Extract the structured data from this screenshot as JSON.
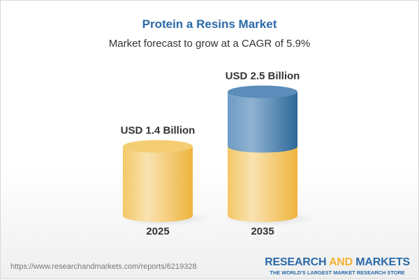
{
  "title": "Protein a Resins Market",
  "subtitle": "Market forecast to grow at a CAGR of 5.9%",
  "chart_data": {
    "type": "bar",
    "style": "3d-cylinder",
    "title": "Protein a Resins Market",
    "subtitle": "Market forecast to grow at a CAGR of 5.9%",
    "categories": [
      "2025",
      "2035"
    ],
    "values": [
      1.4,
      2.5
    ],
    "unit": "USD Billion",
    "data_labels": [
      "USD 1.4 Billion",
      "USD 2.5 Billion"
    ],
    "colors": {
      "base": "#f2c25a",
      "growth": "#3f78ab"
    },
    "grid": false
  },
  "footer": {
    "url": "https://www.researchandmarkets.com/reports/6219328",
    "logo_part1": "RESEARCH ",
    "logo_part2": "AND",
    "logo_part3": " MARKETS",
    "tagline": "THE WORLD'S LARGEST MARKET RESEARCH STORE"
  }
}
